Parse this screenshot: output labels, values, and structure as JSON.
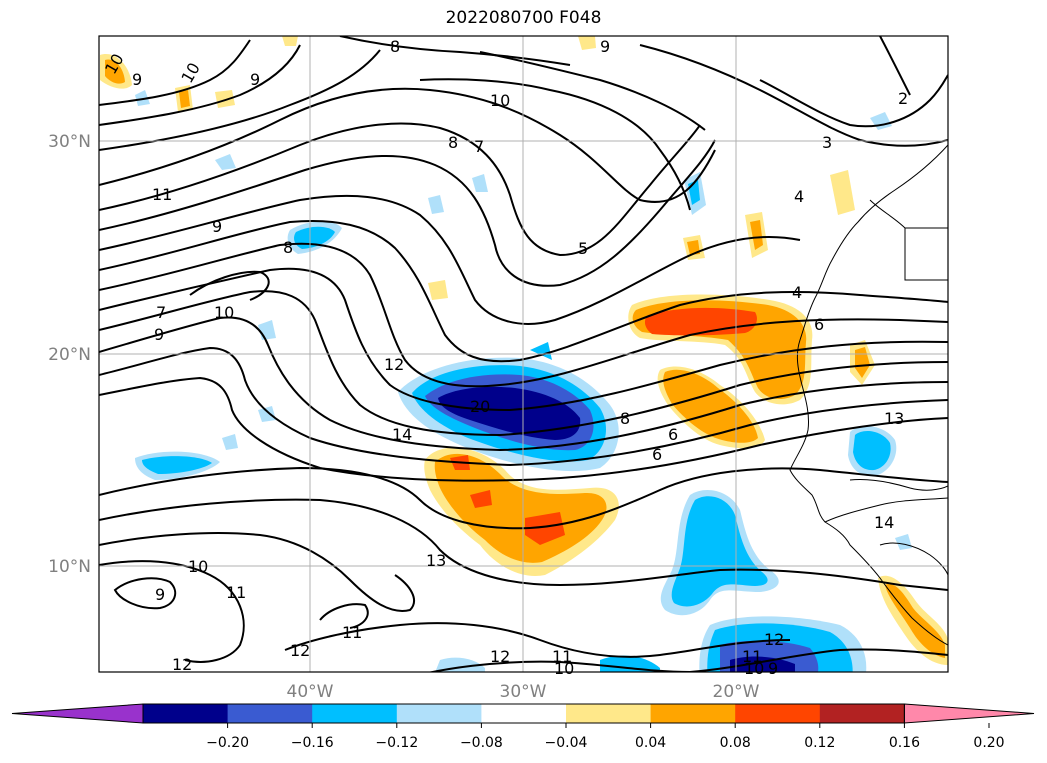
{
  "title": "2022080700 F048",
  "lat_labels": [
    "30°N",
    "20°N",
    "10°N"
  ],
  "lon_labels": [
    "40°W",
    "30°W",
    "20°W"
  ],
  "colorbar": {
    "ticks": [
      "−0.20",
      "−0.16",
      "−0.12",
      "−0.08",
      "−0.04",
      "0.04",
      "0.08",
      "0.12",
      "0.16",
      "0.20"
    ],
    "colors": [
      "#9932cc",
      "#00008b",
      "#3a5bd1",
      "#00bfff",
      "#b0e0fa",
      "#ffffff",
      "#ffe88a",
      "#ffa500",
      "#ff4500",
      "#b22222",
      "#ff88aa"
    ]
  },
  "contour_labels": [
    "10",
    "9",
    "10",
    "9",
    "8",
    "9",
    "10",
    "8",
    "7",
    "2",
    "3",
    "4",
    "11",
    "9",
    "8",
    "5",
    "4",
    "6",
    "9",
    "7",
    "10",
    "12",
    "20",
    "8",
    "6",
    "6",
    "14",
    "13",
    "14",
    "13",
    "10",
    "11",
    "9",
    "11",
    "12",
    "12",
    "12",
    "11",
    "10",
    "12",
    "11",
    "10",
    "9"
  ]
}
